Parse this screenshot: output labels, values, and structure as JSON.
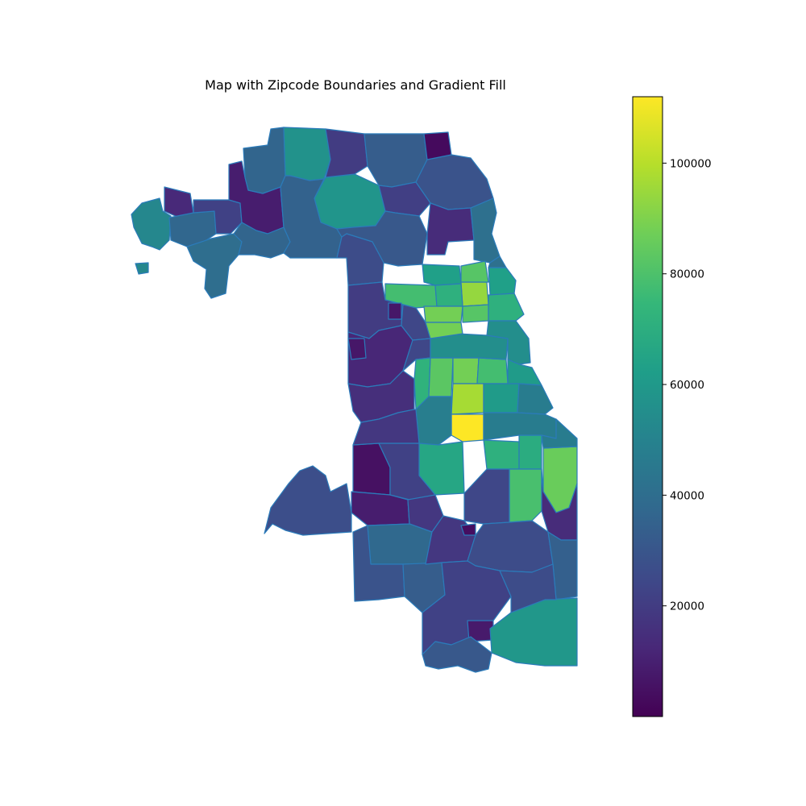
{
  "chart_data": {
    "type": "choropleth",
    "title": "Map with Zipcode Boundaries and Gradient Fill",
    "colormap": "viridis",
    "boundary_color": "#2b7bba",
    "colorbar": {
      "min": 0,
      "max": 112000,
      "ticks": [
        20000,
        40000,
        60000,
        80000,
        100000
      ],
      "tick_labels": [
        "20000",
        "40000",
        "60000",
        "80000",
        "100000"
      ],
      "stops": [
        "#440154",
        "#482878",
        "#3e4989",
        "#31688e",
        "#26828e",
        "#1f9e89",
        "#35b779",
        "#6ece58",
        "#b5de2b",
        "#fde725"
      ]
    },
    "regions": [
      {
        "id": "northwest-arm",
        "value": 52000
      },
      {
        "id": "far-northwest-1",
        "value": 13000
      },
      {
        "id": "far-northwest-2",
        "value": 37000
      },
      {
        "id": "far-northwest-3",
        "value": 40000
      },
      {
        "id": "northwest-1",
        "value": 22000
      },
      {
        "id": "northwest-2",
        "value": 9000
      },
      {
        "id": "northwest-3",
        "value": 36000
      },
      {
        "id": "north-1",
        "value": 57000
      },
      {
        "id": "north-2",
        "value": 58000
      },
      {
        "id": "north-3",
        "value": 35000
      },
      {
        "id": "north-4",
        "value": 20000
      },
      {
        "id": "far-north-1",
        "value": 33000
      },
      {
        "id": "far-north-2",
        "value": 29000
      },
      {
        "id": "far-north-3",
        "value": 3000
      },
      {
        "id": "far-north-4",
        "value": 21000
      },
      {
        "id": "north-central-1",
        "value": 31000
      },
      {
        "id": "north-central-2",
        "value": 14000
      },
      {
        "id": "north-central-3",
        "value": 41000
      },
      {
        "id": "north-central-4",
        "value": 26000
      },
      {
        "id": "lakeview-1",
        "value": 63000
      },
      {
        "id": "lakeview-2",
        "value": 78000
      },
      {
        "id": "lakeview-3",
        "value": 94000
      },
      {
        "id": "lakeview-4",
        "value": 71000
      },
      {
        "id": "lakeview-5",
        "value": 88000
      },
      {
        "id": "lakeview-6",
        "value": 82000
      },
      {
        "id": "west-1",
        "value": 20000
      },
      {
        "id": "west-2",
        "value": 12000
      },
      {
        "id": "west-3",
        "value": 24000
      },
      {
        "id": "west-4",
        "value": 7000
      },
      {
        "id": "west-5",
        "value": 15000
      },
      {
        "id": "loop-1",
        "value": 72000
      },
      {
        "id": "loop-2",
        "value": 83000
      },
      {
        "id": "loop-3",
        "value": 88000
      },
      {
        "id": "loop-4",
        "value": 78000
      },
      {
        "id": "loop-5",
        "value": 97000
      },
      {
        "id": "loop-6",
        "value": 61000
      },
      {
        "id": "loop-7",
        "value": 112000
      },
      {
        "id": "loop-8",
        "value": 48000
      },
      {
        "id": "loop-9",
        "value": 55000
      },
      {
        "id": "near-south-1",
        "value": 71000
      },
      {
        "id": "near-south-2",
        "value": 69000
      },
      {
        "id": "near-south-3",
        "value": 66000
      },
      {
        "id": "near-south-4",
        "value": 47000
      },
      {
        "id": "near-south-5",
        "value": 79000
      },
      {
        "id": "lakeshore-south-1",
        "value": 86000
      },
      {
        "id": "lakeshore-south-2",
        "value": 14000
      },
      {
        "id": "southwest-arm",
        "value": 27000
      },
      {
        "id": "southwest-1",
        "value": 5000
      },
      {
        "id": "southwest-2",
        "value": 9000
      },
      {
        "id": "southwest-3",
        "value": 22000
      },
      {
        "id": "southwest-4",
        "value": 18000
      },
      {
        "id": "south-1",
        "value": 38000
      },
      {
        "id": "south-2",
        "value": 29000
      },
      {
        "id": "south-3",
        "value": 33000
      },
      {
        "id": "south-4",
        "value": 18000
      },
      {
        "id": "south-5",
        "value": 24000
      },
      {
        "id": "south-6",
        "value": 26000
      },
      {
        "id": "south-7",
        "value": 34000
      },
      {
        "id": "south-8",
        "value": 4000
      },
      {
        "id": "far-south-1",
        "value": 22000
      },
      {
        "id": "far-south-2",
        "value": 8000
      },
      {
        "id": "far-south-3",
        "value": 59000
      },
      {
        "id": "far-south-4",
        "value": 31000
      }
    ]
  }
}
